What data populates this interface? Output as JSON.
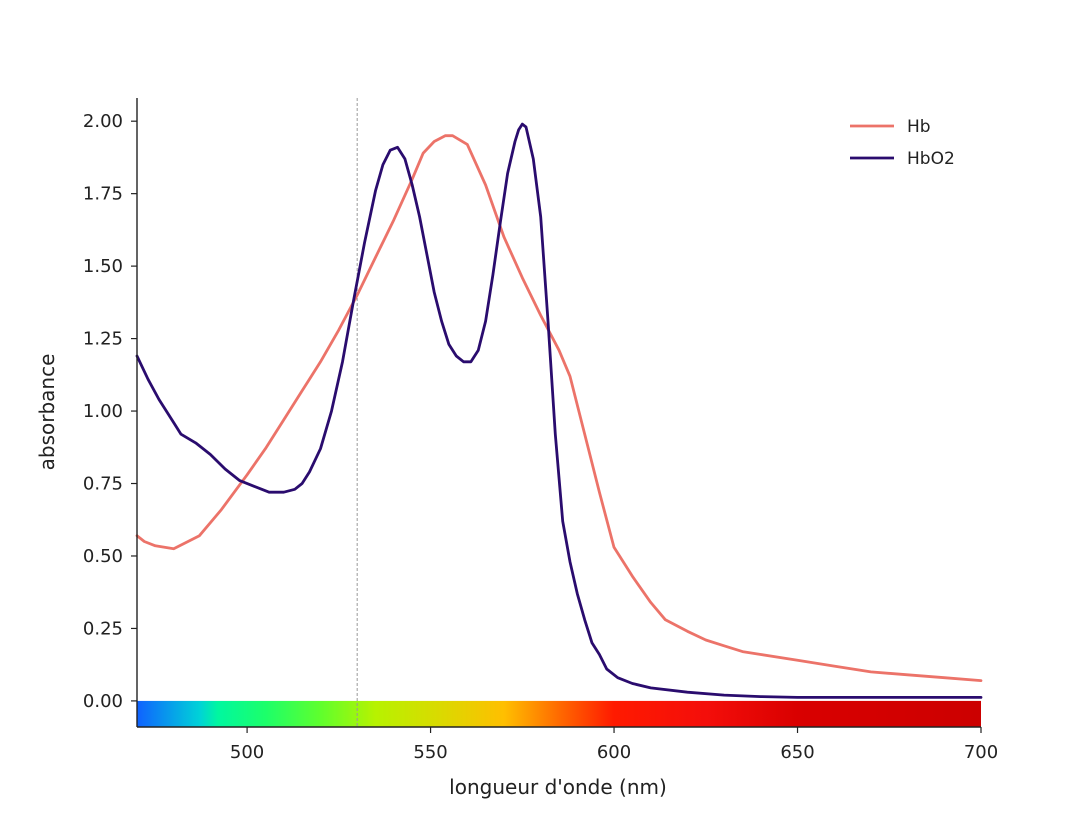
{
  "chart_data": {
    "type": "line",
    "title": "",
    "xlabel": "longueur d'onde (nm)",
    "ylabel": "absorbance",
    "xlim": [
      470,
      700
    ],
    "ylim": [
      -0.09,
      2.08
    ],
    "xticks": [
      500,
      550,
      600,
      650,
      700
    ],
    "yticks": [
      0.0,
      0.25,
      0.5,
      0.75,
      1.0,
      1.25,
      1.5,
      1.75,
      2.0
    ],
    "ytick_labels": [
      "0.00",
      "0.25",
      "0.50",
      "0.75",
      "1.00",
      "1.25",
      "1.50",
      "1.75",
      "2.00"
    ],
    "vline_x": 530,
    "legend_position": "top-right",
    "spectrum_band": {
      "x_from": 470,
      "x_to": 700,
      "y_from": -0.09,
      "y_to": 0.0
    },
    "colors": {
      "Hb": "#ec7369",
      "HbO2": "#2a0c6e",
      "vline": "#999999",
      "axis": "#222222"
    },
    "spectrum_stops": [
      {
        "nm": 470,
        "color": "#0f62ff"
      },
      {
        "nm": 487,
        "color": "#00d2d8"
      },
      {
        "nm": 492,
        "color": "#00f7a0"
      },
      {
        "nm": 505,
        "color": "#1cff6a"
      },
      {
        "nm": 520,
        "color": "#5fff2d"
      },
      {
        "nm": 535,
        "color": "#b7f200"
      },
      {
        "nm": 553,
        "color": "#dbd900"
      },
      {
        "nm": 570,
        "color": "#ffbf00"
      },
      {
        "nm": 585,
        "color": "#ff6a00"
      },
      {
        "nm": 600,
        "color": "#ff1a00"
      },
      {
        "nm": 625,
        "color": "#f40e0a"
      },
      {
        "nm": 650,
        "color": "#d90000"
      },
      {
        "nm": 700,
        "color": "#cc0000"
      }
    ],
    "series": [
      {
        "name": "Hb",
        "x": [
          470,
          472,
          475,
          480,
          487,
          493,
          500,
          505,
          510,
          515,
          520,
          525,
          530,
          535,
          540,
          545,
          548,
          551,
          554,
          556,
          560,
          565,
          570,
          575,
          580,
          585,
          588,
          592,
          596,
          600,
          605,
          610,
          614,
          620,
          625,
          630,
          635,
          640,
          650,
          660,
          670,
          680,
          690,
          700
        ],
        "values": [
          0.57,
          0.55,
          0.535,
          0.525,
          0.57,
          0.66,
          0.78,
          0.87,
          0.97,
          1.07,
          1.17,
          1.28,
          1.4,
          1.53,
          1.66,
          1.8,
          1.89,
          1.93,
          1.95,
          1.95,
          1.92,
          1.78,
          1.6,
          1.46,
          1.33,
          1.21,
          1.12,
          0.92,
          0.72,
          0.53,
          0.43,
          0.34,
          0.28,
          0.24,
          0.21,
          0.19,
          0.17,
          0.16,
          0.14,
          0.12,
          0.1,
          0.09,
          0.08,
          0.07
        ]
      },
      {
        "name": "HbO2",
        "x": [
          470,
          473,
          476,
          480,
          482,
          486,
          490,
          494,
          498,
          502,
          504,
          506,
          510,
          513,
          515,
          517,
          520,
          523,
          526,
          529,
          532,
          535,
          537,
          539,
          541,
          543,
          545,
          547,
          549,
          551,
          553,
          555,
          557,
          559,
          561,
          563,
          565,
          567,
          569,
          571,
          573,
          574,
          575,
          576,
          578,
          580,
          582,
          584,
          586,
          588,
          590,
          592,
          594,
          596,
          598,
          601,
          605,
          610,
          620,
          630,
          640,
          650,
          660,
          680,
          700
        ],
        "values": [
          1.19,
          1.11,
          1.04,
          0.96,
          0.92,
          0.89,
          0.85,
          0.8,
          0.76,
          0.74,
          0.73,
          0.72,
          0.72,
          0.73,
          0.75,
          0.79,
          0.87,
          1.0,
          1.17,
          1.38,
          1.58,
          1.76,
          1.85,
          1.9,
          1.91,
          1.87,
          1.78,
          1.67,
          1.54,
          1.41,
          1.31,
          1.23,
          1.19,
          1.17,
          1.17,
          1.21,
          1.31,
          1.47,
          1.65,
          1.82,
          1.93,
          1.97,
          1.99,
          1.98,
          1.87,
          1.67,
          1.31,
          0.92,
          0.62,
          0.48,
          0.37,
          0.28,
          0.2,
          0.16,
          0.11,
          0.08,
          0.06,
          0.045,
          0.03,
          0.02,
          0.015,
          0.012,
          0.012,
          0.012,
          0.012
        ]
      }
    ]
  }
}
